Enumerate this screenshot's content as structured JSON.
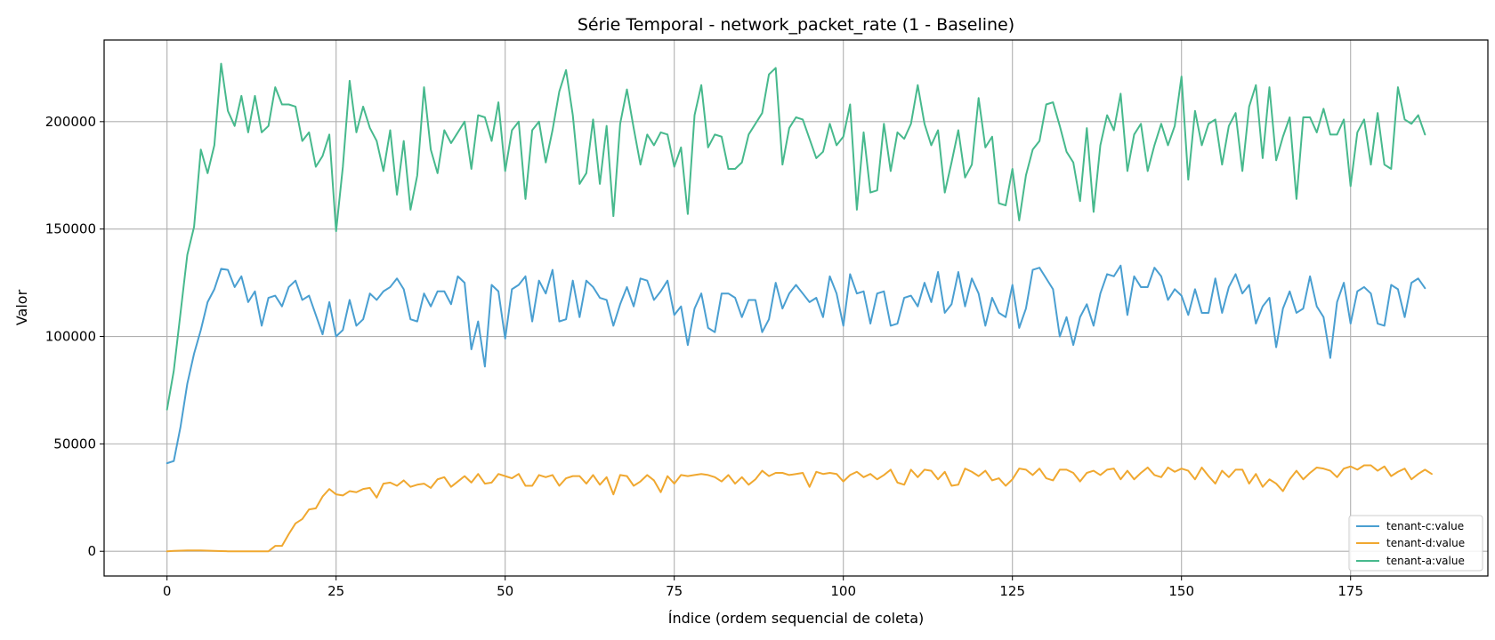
{
  "chart_data": {
    "type": "line",
    "title": "Série Temporal - network_packet_rate (1 - Baseline)",
    "xlabel": "Índice (ordem sequencial de coleta)",
    "ylabel": "Valor",
    "xlim": [
      -9.3,
      195.3
    ],
    "ylim": [
      -11500,
      238000
    ],
    "xticks": [
      0,
      25,
      50,
      75,
      100,
      125,
      150,
      175
    ],
    "xtick_labels": [
      "0",
      "25",
      "50",
      "75",
      "100",
      "125",
      "150",
      "175"
    ],
    "yticks": [
      0,
      50000,
      100000,
      150000,
      200000
    ],
    "ytick_labels": [
      "0",
      "50000",
      "100000",
      "150000",
      "200000"
    ],
    "grid": true,
    "legend_position": "lower-right",
    "series": [
      {
        "name": "tenant-c:value",
        "color": "#4a9fd1",
        "values": [
          41000,
          42000,
          58000,
          78000,
          92000,
          103000,
          116000,
          122000,
          131500,
          131000,
          123000,
          128000,
          116000,
          121000,
          105000,
          118000,
          119000,
          114000,
          123000,
          126000,
          117000,
          119000,
          110000,
          101000,
          116000,
          100000,
          103000,
          117000,
          105000,
          108000,
          120000,
          117000,
          121000,
          123000,
          127000,
          122000,
          108000,
          107000,
          120000,
          114000,
          121000,
          121000,
          115000,
          128000,
          125000,
          94000,
          107000,
          86000,
          124000,
          121000,
          99000,
          122000,
          124000,
          128000,
          107000,
          126000,
          120000,
          131000,
          107000,
          108000,
          126000,
          109000,
          126000,
          123000,
          118000,
          117000,
          105000,
          115000,
          123000,
          114000,
          127000,
          126000,
          117000,
          121000,
          126000,
          110000,
          114000,
          96000,
          113000,
          120000,
          104000,
          102000,
          120000,
          120000,
          118000,
          109000,
          117000,
          117000,
          102000,
          108000,
          125000,
          113000,
          120000,
          124000,
          120000,
          116000,
          118000,
          109000,
          128000,
          120000,
          105000,
          129000,
          120000,
          121000,
          106000,
          120000,
          121000,
          105000,
          106000,
          118000,
          119000,
          114000,
          125000,
          116000,
          130000,
          111000,
          115000,
          130000,
          114000,
          127000,
          120000,
          105000,
          118000,
          111000,
          109000,
          124000,
          104000,
          113000,
          131000,
          132000,
          127000,
          122000,
          100000,
          109000,
          96000,
          109000,
          115000,
          105000,
          120000,
          129000,
          128000,
          133000,
          110000,
          128000,
          123000,
          123000,
          132000,
          128000,
          117000,
          122000,
          119000,
          110000,
          122000,
          111000,
          111000,
          127000,
          111000,
          123000,
          129000,
          120000,
          124000,
          106000,
          114000,
          118000,
          95000,
          113000,
          121000,
          111000,
          113000,
          128000,
          114000,
          109000,
          90000,
          116000,
          125000,
          106000,
          121000,
          123000,
          120000,
          106000,
          105000,
          124000,
          122000,
          109000,
          125000,
          127000,
          122500
        ]
      },
      {
        "name": "tenant-d:value",
        "color": "#f0a830",
        "values": [
          0,
          200,
          300,
          400,
          400,
          400,
          300,
          200,
          100,
          0,
          0,
          0,
          0,
          0,
          0,
          0,
          2500,
          2500,
          8000,
          13000,
          15000,
          19500,
          20000,
          25500,
          29000,
          26500,
          26000,
          28000,
          27500,
          29000,
          29500,
          25000,
          31500,
          32000,
          30500,
          33000,
          30000,
          31000,
          31500,
          29500,
          33500,
          34500,
          30000,
          32500,
          35000,
          32000,
          36000,
          31500,
          32000,
          36000,
          35000,
          34000,
          36000,
          30500,
          30500,
          35500,
          34500,
          35500,
          30500,
          34000,
          35000,
          35000,
          31500,
          35500,
          31000,
          34500,
          26500,
          35500,
          35000,
          30500,
          32500,
          35500,
          33000,
          27500,
          35000,
          31500,
          35500,
          35000,
          35500,
          36000,
          35500,
          34500,
          32500,
          35500,
          31500,
          34500,
          31000,
          33500,
          37500,
          35000,
          36500,
          36500,
          35500,
          36000,
          36500,
          30000,
          37000,
          36000,
          36500,
          36000,
          32500,
          35500,
          37000,
          34500,
          36000,
          33500,
          35500,
          38000,
          32000,
          31000,
          38000,
          34500,
          38000,
          37500,
          33500,
          37000,
          30500,
          31000,
          38500,
          37000,
          35000,
          37500,
          33000,
          34000,
          30500,
          33500,
          38500,
          38000,
          35500,
          38500,
          34000,
          33000,
          38000,
          38000,
          36500,
          32500,
          36500,
          37500,
          35500,
          38000,
          38500,
          33500,
          37500,
          33500,
          36500,
          39000,
          35500,
          34500,
          39000,
          37000,
          38500,
          37500,
          33500,
          39000,
          35000,
          31500,
          37500,
          34500,
          38000,
          38000,
          31500,
          36000,
          30000,
          33500,
          31500,
          28000,
          33500,
          37500,
          33500,
          36500,
          39000,
          38500,
          37500,
          34500,
          38500,
          39500,
          38000,
          40000,
          40000,
          37500,
          39500,
          35000,
          37000,
          38500,
          33500,
          36000,
          38000,
          36000
        ]
      },
      {
        "name": "tenant-a:value",
        "color": "#47b98d",
        "values": [
          66000,
          84000,
          111000,
          138000,
          151000,
          187000,
          176000,
          189000,
          227000,
          205000,
          198000,
          212000,
          195000,
          212000,
          195000,
          198000,
          216000,
          208000,
          208000,
          207000,
          191000,
          195000,
          179000,
          184000,
          194000,
          149000,
          179000,
          219000,
          195000,
          207000,
          197000,
          191000,
          177000,
          196000,
          166000,
          191000,
          159000,
          175000,
          216000,
          187000,
          176000,
          196000,
          190000,
          195000,
          200000,
          178000,
          203000,
          202000,
          191000,
          209000,
          177000,
          196000,
          200000,
          164000,
          196000,
          200000,
          181000,
          196000,
          214000,
          224000,
          203000,
          171000,
          176000,
          201000,
          171000,
          198000,
          156000,
          199000,
          215000,
          197000,
          180000,
          194000,
          189000,
          195000,
          194000,
          179000,
          188000,
          157000,
          203000,
          217000,
          188000,
          194000,
          193000,
          178000,
          178000,
          181000,
          194000,
          199000,
          204000,
          222000,
          225000,
          180000,
          197000,
          202000,
          201000,
          192000,
          183000,
          186000,
          199000,
          189000,
          193000,
          208000,
          159000,
          195000,
          167000,
          168000,
          199000,
          177000,
          195000,
          192000,
          199000,
          217000,
          199000,
          189000,
          196000,
          167000,
          181000,
          196000,
          174000,
          180000,
          211000,
          188000,
          193000,
          162000,
          161000,
          178000,
          154000,
          175000,
          187000,
          191000,
          208000,
          209000,
          198000,
          186000,
          181000,
          163000,
          197000,
          158000,
          189000,
          203000,
          196000,
          213000,
          177000,
          194000,
          199000,
          177000,
          189000,
          199000,
          189000,
          198000,
          221000,
          173000,
          205000,
          189000,
          199000,
          201000,
          180000,
          198000,
          204000,
          177000,
          207000,
          217000,
          183000,
          216000,
          182000,
          193000,
          202000,
          164000,
          202000,
          202000,
          195000,
          206000,
          194000,
          194000,
          201000,
          170000,
          195000,
          201000,
          180000,
          204000,
          180000,
          178000,
          216000,
          201000,
          199000,
          203000,
          194000
        ]
      }
    ]
  }
}
